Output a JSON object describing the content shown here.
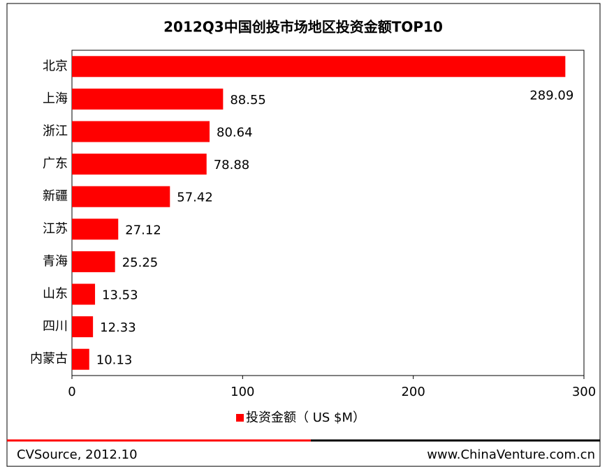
{
  "chart_data": {
    "type": "bar",
    "orientation": "horizontal",
    "title": "2012Q3中国创投市场地区投资金额TOP10",
    "categories": [
      "北京",
      "上海",
      "浙江",
      "广东",
      "新疆",
      "江苏",
      "青海",
      "山东",
      "四川",
      "内蒙古"
    ],
    "series": [
      {
        "name": "投资金额（ US $M）",
        "color": "#ff0000",
        "values": [
          289.09,
          88.55,
          80.64,
          78.88,
          57.42,
          27.12,
          25.25,
          13.53,
          12.33,
          10.13
        ]
      }
    ],
    "xlim": [
      0,
      300
    ],
    "xticks": [
      0,
      100,
      200,
      300
    ],
    "grid": false,
    "source": "CVSource, 2012.10",
    "website": "www.ChinaVenture.com.cn"
  }
}
